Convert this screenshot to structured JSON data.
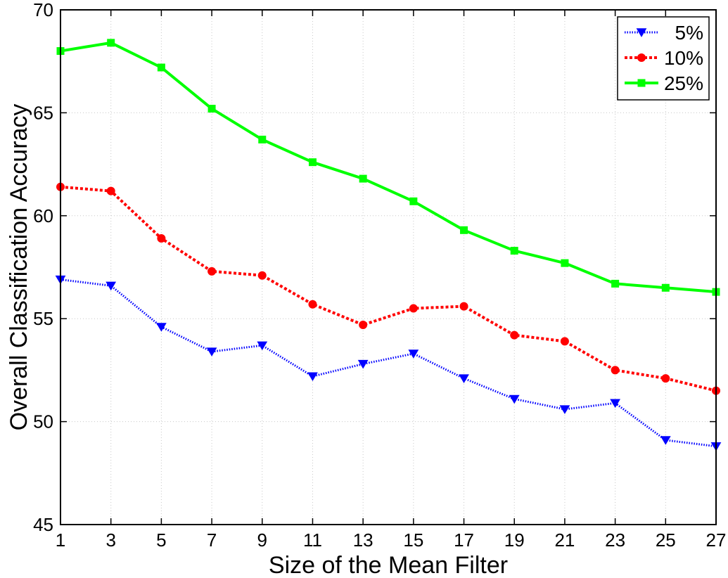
{
  "chart_data": {
    "type": "line",
    "title": "",
    "xlabel": "Size of the Mean Filter",
    "ylabel": "Overall Classification Accuracy",
    "x": [
      1,
      3,
      5,
      7,
      9,
      11,
      13,
      15,
      17,
      19,
      21,
      23,
      25,
      27
    ],
    "x_ticks": [
      "1",
      "3",
      "5",
      "7",
      "9",
      "11",
      "13",
      "15",
      "17",
      "19",
      "21",
      "23",
      "25",
      "27"
    ],
    "y_ticks": [
      "45",
      "50",
      "55",
      "60",
      "65",
      "70"
    ],
    "xlim": [
      1,
      27
    ],
    "ylim": [
      45,
      70
    ],
    "grid": true,
    "legend_position": "top-right",
    "series": [
      {
        "name": "5%",
        "color": "#0000ff",
        "line_style": "dotted",
        "marker": "triangle-down",
        "values": [
          56.9,
          56.6,
          54.6,
          53.4,
          53.7,
          52.2,
          52.8,
          53.3,
          52.1,
          51.1,
          50.6,
          50.9,
          49.1,
          48.8
        ]
      },
      {
        "name": "10%",
        "color": "#ff0000",
        "line_style": "dashed",
        "marker": "circle",
        "values": [
          61.4,
          61.2,
          58.9,
          57.3,
          57.1,
          55.7,
          54.7,
          55.5,
          55.6,
          54.2,
          53.9,
          52.5,
          52.1,
          51.5
        ]
      },
      {
        "name": "25%",
        "color": "#00ff00",
        "line_style": "solid",
        "marker": "square",
        "values": [
          68.0,
          68.4,
          67.2,
          65.2,
          63.7,
          62.6,
          61.8,
          60.7,
          59.3,
          58.3,
          57.7,
          56.7,
          56.5,
          56.3
        ]
      }
    ]
  }
}
